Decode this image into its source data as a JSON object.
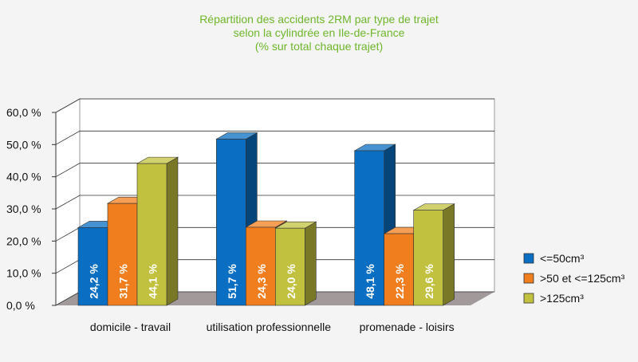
{
  "colors": {
    "series": [
      "#0a6fc3",
      "#f07d1e",
      "#c1c13f"
    ],
    "title": "#6fb62c",
    "floor": "#a29a9a",
    "wall": "#ffffff",
    "grid": "#333333"
  },
  "chart_data": {
    "type": "bar",
    "title_lines": [
      "Répartition des accidents 2RM par type de trajet",
      "selon la cylindrée en Ile-de-France",
      "(% sur total chaque trajet)"
    ],
    "categories": [
      "domicile - travail",
      "utilisation professionnelle",
      "promenade - loisirs"
    ],
    "series": [
      {
        "name": "<=50cm³",
        "values": [
          24.2,
          51.7,
          48.1
        ],
        "labels": [
          "24,2 %",
          "51,7 %",
          "48,1 %"
        ]
      },
      {
        "name": ">50 et <=125cm³",
        "values": [
          31.7,
          24.3,
          22.3
        ],
        "labels": [
          "31,7 %",
          "24,3 %",
          "22,3 %"
        ]
      },
      {
        "name": ">125cm³",
        "values": [
          44.1,
          24.0,
          29.6
        ],
        "labels": [
          "44,1 %",
          "24,0 %",
          "29,6 %"
        ]
      }
    ],
    "yticks": [
      "0,0 %",
      "10,0 %",
      "20,0 %",
      "30,0 %",
      "40,0 %",
      "50,0 %",
      "60,0 %"
    ],
    "ylim": [
      0,
      60
    ],
    "grid": true,
    "legend_position": "right",
    "style": "3d-clustered-bar"
  }
}
